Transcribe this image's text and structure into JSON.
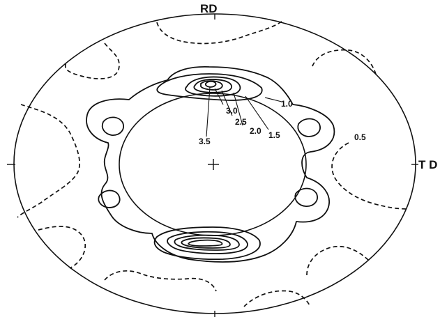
{
  "figure": {
    "labels": {
      "top_axis": "RD",
      "right_axis": "T D"
    },
    "contour_levels": [
      "3.5",
      "3.0",
      "2.5",
      "2.0",
      "1.5",
      "1.0",
      "0.5"
    ]
  }
}
